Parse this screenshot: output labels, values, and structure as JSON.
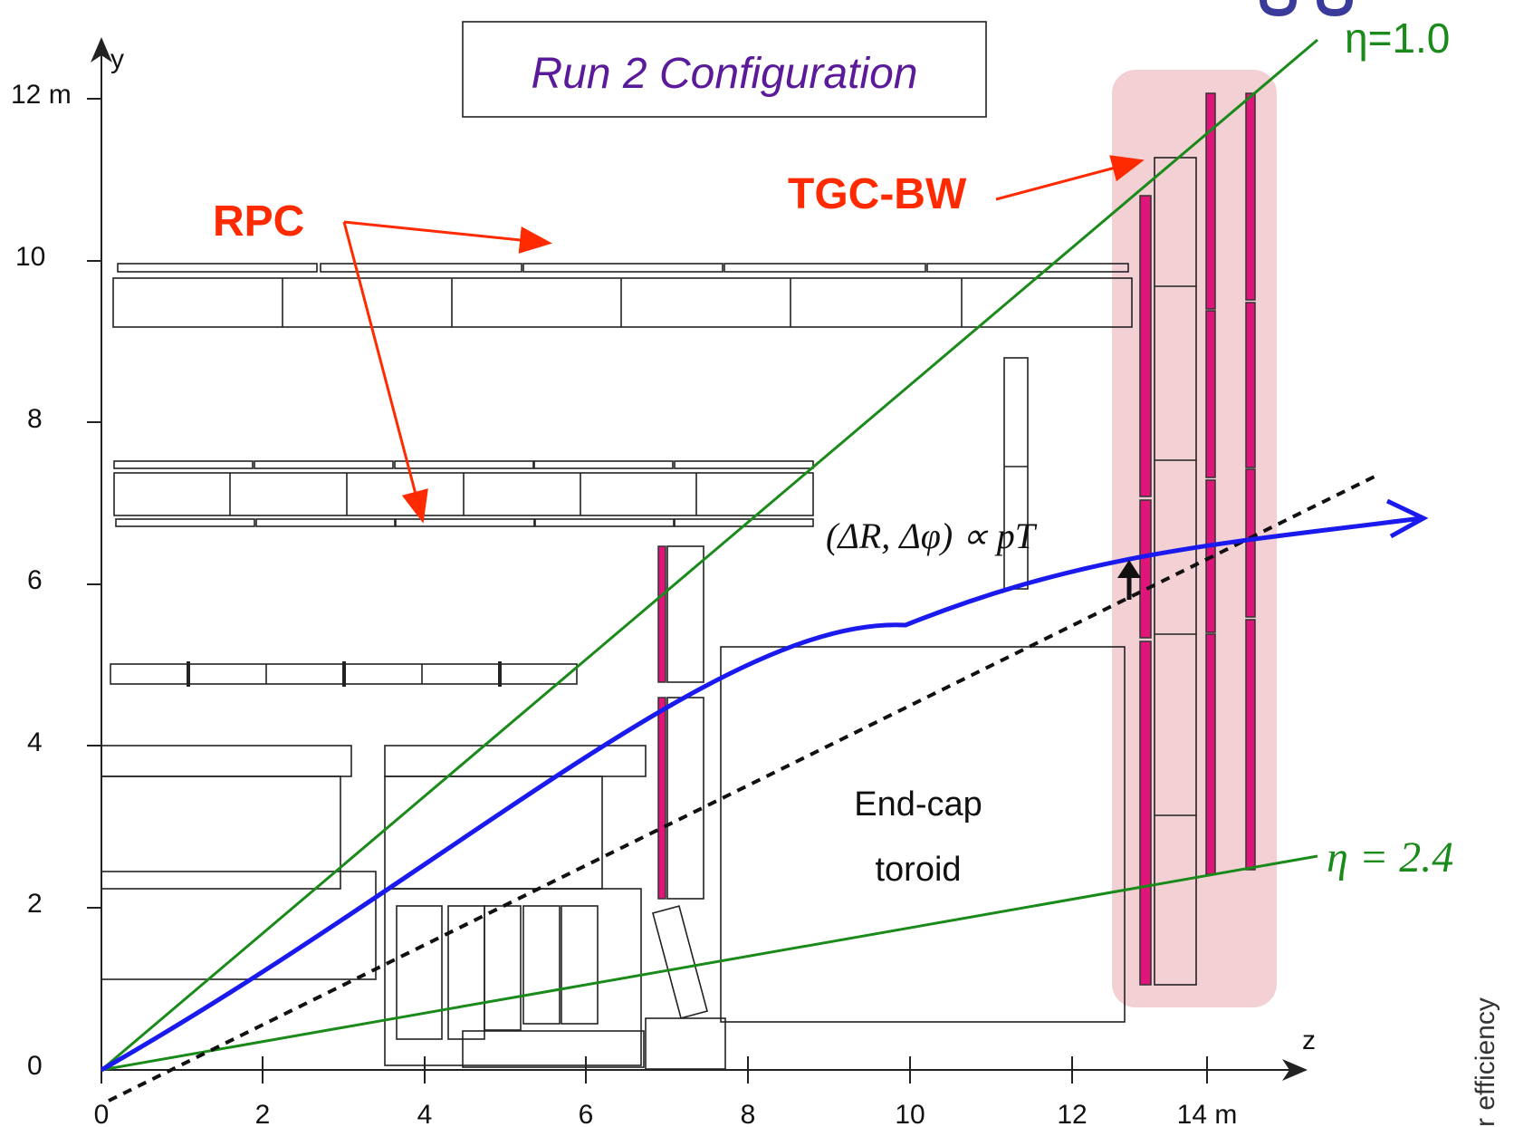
{
  "title": "Run 2 Configuration",
  "axes": {
    "x_label": "z",
    "y_label": "y",
    "x_ticks": [
      "0",
      "2",
      "4",
      "6",
      "8",
      "10",
      "12",
      "14 m"
    ],
    "y_ticks": [
      "0",
      "2",
      "4",
      "6",
      "8",
      "10",
      "12 m"
    ]
  },
  "labels": {
    "rpc": "RPC",
    "tgc_bw": "TGC-BW",
    "eta_10": "η=1.0",
    "eta_24": "η = 2.4",
    "pt_relation": "(ΔR, Δφ) ∝ pT",
    "toroid_line1": "End-cap",
    "toroid_line2": "toroid",
    "side_text": "r efficiency"
  },
  "colors": {
    "rpc_label": "#ff2a00",
    "tgc_label": "#ff2a00",
    "eta_lines": "#1a8a1a",
    "muon_track": "#1a1aee",
    "tgc_chamber": "#e0157a",
    "tgc_highlight": "#f2d0d4",
    "title_text": "#5a1a9a"
  }
}
